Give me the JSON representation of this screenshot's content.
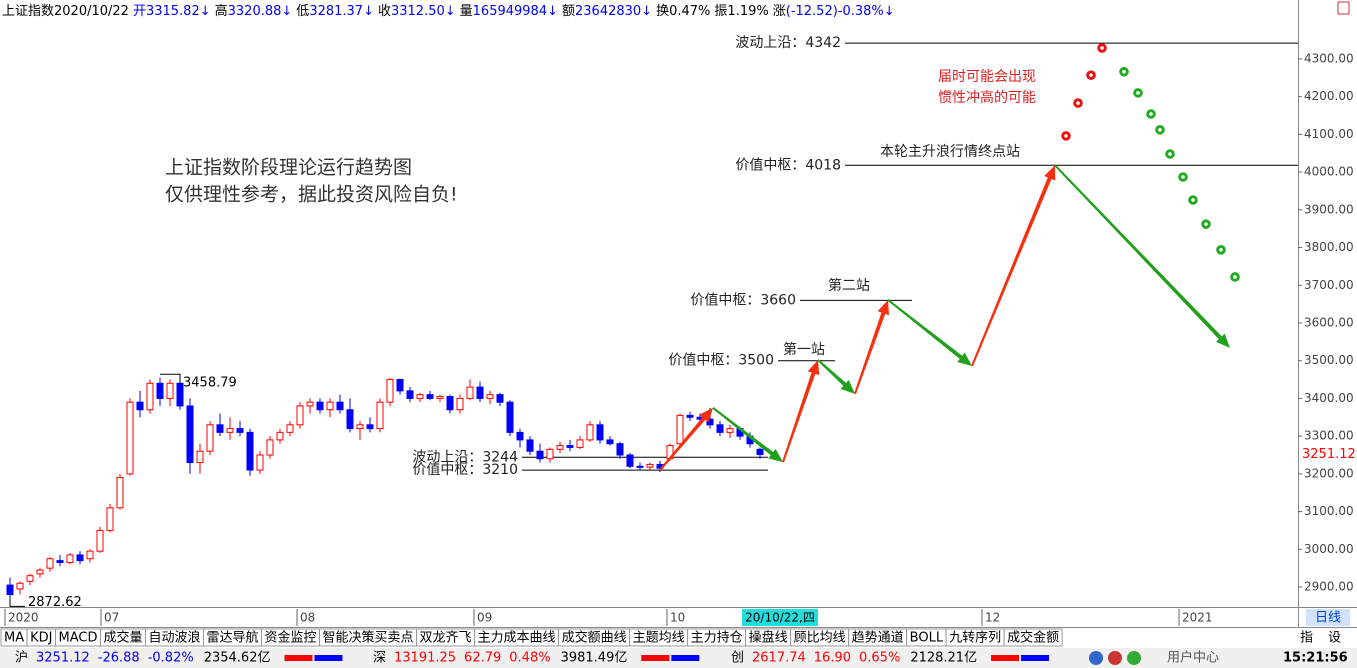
{
  "header": {
    "items": [
      "上证指数",
      "2020/10/22",
      "开",
      "3315.82↓",
      "高",
      "3320.88↓",
      "低",
      "3281.37↓",
      "收",
      "3312.50↓",
      "量",
      "165949984↓",
      "额",
      "23642830↓",
      "换",
      "0.47%",
      "振",
      "1.19%",
      "涨",
      "(-12.52)-0.38%↓"
    ],
    "colors": [
      "#000",
      "#000",
      "#0000ff",
      "#0000ff",
      "#000",
      "#0000ff",
      "#000",
      "#0000ff",
      "#000",
      "#0000ff",
      "#000",
      "#0000ff",
      "#000",
      "#0000ff",
      "#000",
      "#000",
      "#000",
      "#000",
      "#000",
      "#0000ff"
    ]
  },
  "chart_data": {
    "type": "candlestick",
    "candles": [
      [
        2905,
        2925,
        2872.62,
        2880
      ],
      [
        2895,
        2915,
        2880,
        2910
      ],
      [
        2915,
        2935,
        2905,
        2930
      ],
      [
        2935,
        2950,
        2925,
        2945
      ],
      [
        2950,
        2980,
        2940,
        2975
      ],
      [
        2970,
        2985,
        2955,
        2965
      ],
      [
        2965,
        2990,
        2960,
        2985
      ],
      [
        2985,
        2995,
        2960,
        2970
      ],
      [
        2975,
        3000,
        2965,
        2995
      ],
      [
        2995,
        3060,
        2990,
        3050
      ],
      [
        3050,
        3120,
        3045,
        3110
      ],
      [
        3110,
        3200,
        3105,
        3190
      ],
      [
        3200,
        3400,
        3195,
        3390
      ],
      [
        3390,
        3420,
        3350,
        3370
      ],
      [
        3370,
        3450,
        3360,
        3440
      ],
      [
        3440,
        3455,
        3380,
        3400
      ],
      [
        3400,
        3450,
        3380,
        3440
      ],
      [
        3440,
        3458.79,
        3370,
        3380
      ],
      [
        3380,
        3400,
        3200,
        3230
      ],
      [
        3230,
        3280,
        3200,
        3260
      ],
      [
        3260,
        3340,
        3250,
        3330
      ],
      [
        3330,
        3360,
        3300,
        3310
      ],
      [
        3310,
        3350,
        3290,
        3320
      ],
      [
        3320,
        3340,
        3300,
        3310
      ],
      [
        3310,
        3320,
        3195,
        3210
      ],
      [
        3210,
        3260,
        3200,
        3250
      ],
      [
        3250,
        3300,
        3240,
        3290
      ],
      [
        3290,
        3320,
        3280,
        3310
      ],
      [
        3310,
        3340,
        3300,
        3330
      ],
      [
        3330,
        3390,
        3320,
        3380
      ],
      [
        3380,
        3400,
        3360,
        3390
      ],
      [
        3390,
        3400,
        3360,
        3370
      ],
      [
        3370,
        3400,
        3350,
        3390
      ],
      [
        3390,
        3410,
        3360,
        3370
      ],
      [
        3370,
        3400,
        3310,
        3320
      ],
      [
        3320,
        3340,
        3290,
        3330
      ],
      [
        3330,
        3350,
        3310,
        3320
      ],
      [
        3320,
        3400,
        3310,
        3390
      ],
      [
        3390,
        3455,
        3380,
        3450
      ],
      [
        3450,
        3452,
        3410,
        3420
      ],
      [
        3420,
        3430,
        3390,
        3400
      ],
      [
        3400,
        3415,
        3390,
        3410
      ],
      [
        3410,
        3420,
        3395,
        3400
      ],
      [
        3400,
        3410,
        3390,
        3405
      ],
      [
        3405,
        3410,
        3360,
        3370
      ],
      [
        3370,
        3410,
        3360,
        3400
      ],
      [
        3400,
        3450,
        3395,
        3430
      ],
      [
        3430,
        3445,
        3390,
        3400
      ],
      [
        3400,
        3420,
        3385,
        3410
      ],
      [
        3410,
        3415,
        3380,
        3390
      ],
      [
        3390,
        3395,
        3300,
        3310
      ],
      [
        3310,
        3320,
        3270,
        3290
      ],
      [
        3290,
        3300,
        3250,
        3260
      ],
      [
        3260,
        3280,
        3230,
        3240
      ],
      [
        3240,
        3270,
        3230,
        3265
      ],
      [
        3265,
        3285,
        3255,
        3275
      ],
      [
        3275,
        3290,
        3260,
        3270
      ],
      [
        3270,
        3300,
        3265,
        3290
      ],
      [
        3290,
        3340,
        3285,
        3330
      ],
      [
        3330,
        3340,
        3280,
        3290
      ],
      [
        3290,
        3300,
        3275,
        3280
      ],
      [
        3280,
        3285,
        3240,
        3250
      ],
      [
        3250,
        3255,
        3215,
        3220
      ],
      [
        3220,
        3230,
        3210,
        3218
      ],
      [
        3218,
        3230,
        3210,
        3225
      ],
      [
        3225,
        3235,
        3205,
        3215
      ],
      [
        3240,
        3280,
        3235,
        3275
      ],
      [
        3280,
        3360,
        3275,
        3355
      ],
      [
        3355,
        3365,
        3340,
        3350
      ],
      [
        3350,
        3360,
        3330,
        3345
      ],
      [
        3345,
        3375,
        3320,
        3330
      ],
      [
        3330,
        3340,
        3300,
        3310
      ],
      [
        3310,
        3330,
        3295,
        3320
      ],
      [
        3320,
        3325,
        3290,
        3300
      ],
      [
        3300,
        3310,
        3270,
        3280
      ],
      [
        3265,
        3270,
        3240,
        3251.12
      ]
    ],
    "up_color": "#ff0000",
    "down_color": "#0000ff",
    "last_color": "#ff0000",
    "xlim": [
      -0.5,
      128.8
    ],
    "xticks": [
      {
        "value": -0.5,
        "label": "2020"
      },
      {
        "value": 9.1,
        "label": "07"
      },
      {
        "value": 28.7,
        "label": "08"
      },
      {
        "value": 46.4,
        "label": "09"
      },
      {
        "value": 65.7,
        "label": "10"
      },
      {
        "value": 97.2,
        "label": "12"
      },
      {
        "value": 116.9,
        "label": "2021"
      }
    ],
    "cursor": {
      "value": 77,
      "label": "20/10/22,四"
    },
    "ylim": [
      2847,
      4443
    ],
    "yticks": [
      {
        "value": 2900,
        "label": "2900.00"
      },
      {
        "value": 3000,
        "label": "3000.00"
      },
      {
        "value": 3100,
        "label": "3100.00"
      },
      {
        "value": 3200,
        "label": "3200.00"
      },
      {
        "value": 3300,
        "label": "3300.00"
      },
      {
        "value": 3400,
        "label": "3400.00"
      },
      {
        "value": 3500,
        "label": "3500.00"
      },
      {
        "value": 3600,
        "label": "3600.00"
      },
      {
        "value": 3700,
        "label": "3700.00"
      },
      {
        "value": 3800,
        "label": "3800.00"
      },
      {
        "value": 3900,
        "label": "3900.00"
      },
      {
        "value": 4000,
        "label": "4000.00"
      },
      {
        "value": 4100,
        "label": "4100.00"
      },
      {
        "value": 4200,
        "label": "4200.00"
      },
      {
        "value": 4300,
        "label": "4300.00"
      }
    ],
    "levels": [
      {
        "label": "波动上沿：",
        "value": 4342,
        "x": [
          83.5,
          128.8
        ]
      },
      {
        "label": "价值中枢：",
        "value": 4018,
        "x": [
          83.5,
          128.8
        ]
      },
      {
        "label": "价值中枢：",
        "value": 3660,
        "x": [
          79,
          90.2
        ]
      },
      {
        "label": "价值中枢：",
        "value": 3500,
        "x": [
          76.8,
          82.5
        ]
      },
      {
        "label": "波动上沿：",
        "value": 3244,
        "x": [
          51.2,
          75.8
        ]
      },
      {
        "label": "价值中枢：",
        "value": 3210,
        "x": [
          51.2,
          75.8
        ]
      }
    ],
    "trend": {
      "x": [
        65,
        70.3,
        77.3,
        80.8,
        84.5,
        87.8,
        96.2,
        104.5,
        122
      ],
      "y": [
        3210,
        3375,
        3231,
        3502,
        3412,
        3661,
        3486,
        4018,
        3534
      ]
    },
    "trend_up_color": "#f5300f",
    "trend_down_color": "#22a01c",
    "dots": [
      {
        "color": "#ee1111",
        "x": [
          105.6,
          106.8,
          108.1,
          109.2
        ],
        "y": [
          4096,
          4183,
          4257,
          4329
        ]
      },
      {
        "color": "#22aa22",
        "x": [
          111.4,
          112.8,
          114.1,
          115,
          116,
          117.3,
          118.3,
          119.6,
          121.1,
          122.5
        ],
        "y": [
          4266,
          4210,
          4154,
          4112,
          4048,
          3987,
          3926,
          3862,
          3794,
          3722
        ]
      }
    ],
    "title_lines": [
      "上证指数阶段理论运行趋势图",
      "仅供理性参考，据此投资风险自负!"
    ],
    "annotations": [
      "届时可能会出现",
      "惯性冲高的可能",
      "本轮主升浪行情终点站",
      "第二站",
      "第一站"
    ],
    "period": "日线"
  },
  "toolbar": {
    "tabs": [
      "MA",
      "KDJ",
      "MACD",
      "成交量",
      "自动波浪",
      "雷达导航",
      "资金监控",
      "智能决策买卖点",
      "双龙齐飞",
      "主力成本曲线",
      "成交额曲线",
      "主题均线",
      "主力持仓",
      "操盘线",
      "顾比均线",
      "趋势通道",
      "BOLL",
      "九转序列",
      "成交金额"
    ],
    "right": [
      "指",
      "设"
    ]
  },
  "status": {
    "markets": [
      {
        "name": "沪",
        "price": "3251.12",
        "change": "-26.88",
        "pct": "-0.82%",
        "amount": "2354.62亿",
        "color": "#0000ff"
      },
      {
        "name": "深",
        "price": "13191.25",
        "change": "62.79",
        "pct": "0.48%",
        "amount": "3981.49亿",
        "color": "#ff0000"
      },
      {
        "name": "创",
        "price": "2617.74",
        "change": "16.90",
        "pct": "0.65%",
        "amount": "2128.21亿",
        "color": "#ff0000"
      }
    ],
    "user": "用户中心",
    "time": "15:21:56"
  }
}
